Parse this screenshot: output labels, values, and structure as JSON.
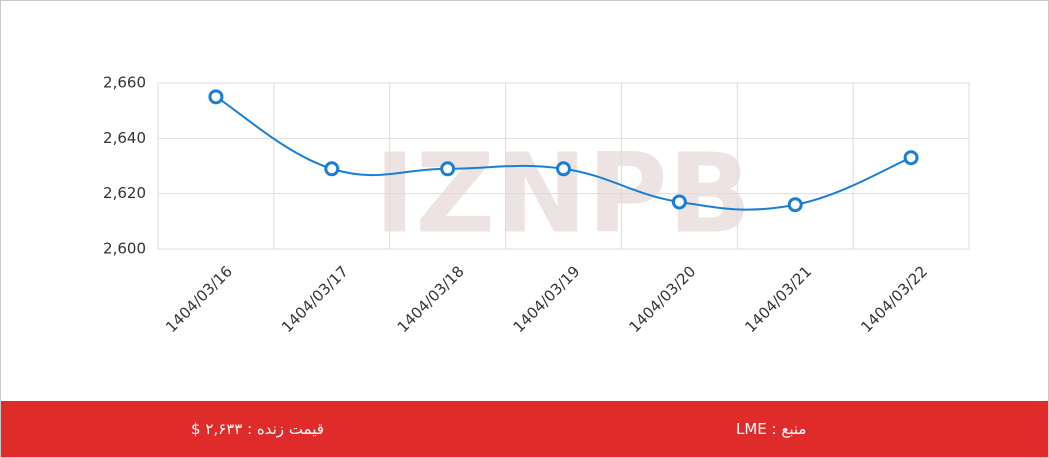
{
  "chart_data": {
    "type": "line",
    "watermark": "IZNPB",
    "categories": [
      "1404/03/16",
      "1404/03/17",
      "1404/03/18",
      "1404/03/19",
      "1404/03/20",
      "1404/03/21",
      "1404/03/22"
    ],
    "series": [
      {
        "color": "#1a7fd4",
        "values": [
          2655,
          2629,
          2629,
          2629,
          2617,
          2616,
          2633
        ]
      }
    ],
    "ylim": [
      2600,
      2660
    ],
    "yticks": [
      {
        "value": 2600,
        "label": "2,600"
      },
      {
        "value": 2620,
        "label": "2,620"
      },
      {
        "value": 2640,
        "label": "2,640"
      },
      {
        "value": 2660,
        "label": "2,660"
      }
    ],
    "grid": true
  },
  "footer": {
    "live_price": "قیمت زنده : ۲,۶۳۳ $",
    "source": "منبع : LME"
  }
}
